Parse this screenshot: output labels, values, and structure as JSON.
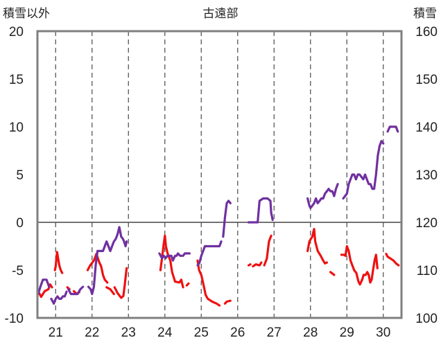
{
  "chart_data": {
    "type": "line",
    "title": "古遠部",
    "left_axis": {
      "label": "積雪以外",
      "ylim": [
        -10,
        20
      ],
      "ticks": [
        -10,
        -5,
        0,
        5,
        10,
        15,
        20
      ]
    },
    "right_axis": {
      "label": "積雪",
      "ylim": [
        100,
        160
      ],
      "ticks": [
        100,
        110,
        120,
        130,
        140,
        150,
        160
      ]
    },
    "x_axis": {
      "range": [
        20.5,
        30.5
      ],
      "ticks": [
        "21",
        "22",
        "23",
        "24",
        "25",
        "26",
        "27",
        "28",
        "29",
        "30"
      ],
      "tick_values": [
        21,
        22,
        23,
        24,
        25,
        26,
        27,
        28,
        29,
        30
      ]
    },
    "grid": {
      "vertical_dashed": true,
      "zero_line": true
    },
    "series": [
      {
        "axis": "left",
        "color": "#ee1111",
        "segments": [
          [
            [
              20.52,
              -7.2
            ],
            [
              20.6,
              -7.8
            ],
            [
              20.7,
              -7.2
            ],
            [
              20.8,
              -7.0
            ],
            [
              20.85,
              -6.5
            ],
            [
              20.9,
              -6.8
            ]
          ],
          [
            [
              20.98,
              -5.0
            ],
            [
              21.0,
              -4.6
            ],
            [
              21.04,
              -3.1
            ],
            [
              21.1,
              -4.5
            ],
            [
              21.14,
              -5.0
            ],
            [
              21.18,
              -5.3
            ]
          ],
          [
            [
              21.32,
              -6.8
            ],
            [
              21.38,
              -7.0
            ]
          ],
          [
            [
              21.5,
              -7.2
            ],
            [
              21.58,
              -7.5
            ],
            [
              21.65,
              -7.3
            ]
          ],
          [
            [
              21.88,
              -5.0
            ],
            [
              21.95,
              -4.5
            ],
            [
              22.05,
              -4.0
            ],
            [
              22.12,
              -3.3
            ],
            [
              22.2,
              -4.2
            ],
            [
              22.25,
              -4.6
            ],
            [
              22.3,
              -5.5
            ],
            [
              22.35,
              -6.0
            ],
            [
              22.42,
              -6.3
            ]
          ],
          [
            [
              22.4,
              -6.8
            ],
            [
              22.5,
              -7.0
            ],
            [
              22.6,
              -7.5
            ]
          ],
          [
            [
              22.62,
              -6.8
            ],
            [
              22.7,
              -7.4
            ],
            [
              22.8,
              -7.9
            ],
            [
              22.86,
              -7.7
            ],
            [
              22.9,
              -6.5
            ],
            [
              22.95,
              -4.8
            ]
          ],
          [
            [
              23.88,
              -5.0
            ],
            [
              23.93,
              -3.5
            ],
            [
              23.96,
              -2.5
            ],
            [
              24.0,
              -1.4
            ],
            [
              24.03,
              -2.5
            ],
            [
              24.08,
              -3.3
            ],
            [
              24.15,
              -4.0
            ],
            [
              24.2,
              -5.2
            ],
            [
              24.28,
              -6.2
            ],
            [
              24.4,
              -6.3
            ],
            [
              24.45,
              -6.0
            ],
            [
              24.5,
              -6.8
            ]
          ],
          [
            [
              24.6,
              -6.6
            ],
            [
              24.65,
              -6.4
            ]
          ],
          [
            [
              24.9,
              -4.0
            ],
            [
              24.94,
              -5.0
            ],
            [
              25.0,
              -5.5
            ],
            [
              25.06,
              -6.5
            ],
            [
              25.12,
              -7.6
            ],
            [
              25.18,
              -8.0
            ],
            [
              25.3,
              -8.3
            ],
            [
              25.42,
              -8.5
            ],
            [
              25.5,
              -8.7
            ]
          ],
          [
            [
              25.65,
              -8.5
            ],
            [
              25.7,
              -8.3
            ],
            [
              25.8,
              -8.2
            ]
          ],
          [
            [
              26.3,
              -4.5
            ],
            [
              26.35,
              -4.4
            ]
          ],
          [
            [
              26.42,
              -4.6
            ],
            [
              26.5,
              -4.4
            ],
            [
              26.6,
              -4.5
            ],
            [
              26.65,
              -4.2
            ]
          ],
          [
            [
              26.73,
              -4.5
            ],
            [
              26.8,
              -3.8
            ],
            [
              26.86,
              -2.0
            ],
            [
              26.92,
              -1.4
            ]
          ],
          [
            [
              27.92,
              -3.0
            ],
            [
              27.97,
              -2.0
            ],
            [
              28.0,
              -1.8
            ],
            [
              28.05,
              -1.5
            ],
            [
              28.08,
              -1.0
            ],
            [
              28.1,
              -0.7
            ],
            [
              28.13,
              -2.0
            ],
            [
              28.2,
              -3.0
            ],
            [
              28.28,
              -3.5
            ],
            [
              28.35,
              -4.0
            ],
            [
              28.4,
              -4.3
            ],
            [
              28.45,
              -4.2
            ]
          ],
          [
            [
              28.55,
              -5.2
            ],
            [
              28.65,
              -5.5
            ]
          ],
          [
            [
              28.85,
              -3.4
            ],
            [
              28.92,
              -3.4
            ],
            [
              28.96,
              -3.5
            ],
            [
              29.0,
              -2.5
            ],
            [
              29.05,
              -3.0
            ],
            [
              29.1,
              -4.0
            ],
            [
              29.15,
              -4.5
            ],
            [
              29.2,
              -5.0
            ],
            [
              29.26,
              -5.3
            ],
            [
              29.32,
              -6.2
            ],
            [
              29.36,
              -6.5
            ],
            [
              29.42,
              -6.0
            ],
            [
              29.46,
              -5.5
            ],
            [
              29.52,
              -5.5
            ],
            [
              29.56,
              -5.2
            ],
            [
              29.6,
              -5.5
            ],
            [
              29.64,
              -6.3
            ],
            [
              29.68,
              -6.0
            ],
            [
              29.72,
              -5.0
            ],
            [
              29.76,
              -4.0
            ],
            [
              29.8,
              -3.4
            ],
            [
              29.84,
              -4.8
            ]
          ],
          [
            [
              30.08,
              -3.3
            ],
            [
              30.12,
              -3.6
            ],
            [
              30.2,
              -3.8
            ],
            [
              30.28,
              -4.0
            ],
            [
              30.35,
              -4.3
            ],
            [
              30.42,
              -4.5
            ]
          ]
        ]
      },
      {
        "axis": "right",
        "color": "#7030a0",
        "segments": [
          [
            [
              20.52,
              105.0
            ],
            [
              20.58,
              106.5
            ],
            [
              20.65,
              108.0
            ],
            [
              20.75,
              108.0
            ],
            [
              20.82,
              106.5
            ]
          ],
          [
            [
              20.88,
              104.0
            ],
            [
              20.95,
              103.0
            ],
            [
              21.0,
              104.0
            ],
            [
              21.05,
              104.5
            ],
            [
              21.1,
              104.0
            ],
            [
              21.15,
              104.0
            ],
            [
              21.2,
              104.5
            ],
            [
              21.25,
              104.5
            ],
            [
              21.3,
              105.5
            ]
          ],
          [
            [
              21.35,
              106.0
            ],
            [
              21.42,
              105.0
            ],
            [
              21.5,
              105.0
            ],
            [
              21.6,
              105.0
            ],
            [
              21.68,
              106.0
            ],
            [
              21.75,
              106.5
            ]
          ],
          [
            [
              21.9,
              106.5
            ],
            [
              21.96,
              106.0
            ],
            [
              22.0,
              105.0
            ],
            [
              22.05,
              106.5
            ],
            [
              22.1,
              111.0
            ],
            [
              22.15,
              114.0
            ],
            [
              22.2,
              114.0
            ],
            [
              22.3,
              114.0
            ],
            [
              22.35,
              115.0
            ],
            [
              22.4,
              116.0
            ],
            [
              22.45,
              115.0
            ],
            [
              22.5,
              114.0
            ],
            [
              22.55,
              115.0
            ],
            [
              22.6,
              116.0
            ],
            [
              22.65,
              116.5
            ],
            [
              22.7,
              117.5
            ],
            [
              22.75,
              119.0
            ],
            [
              22.8,
              117.0
            ],
            [
              22.85,
              116.5
            ],
            [
              22.88,
              116.0
            ],
            [
              22.92,
              115.0
            ],
            [
              22.95,
              116.0
            ]
          ],
          [
            [
              23.85,
              113.5
            ],
            [
              23.92,
              112.5
            ],
            [
              23.97,
              113.0
            ],
            [
              24.02,
              112.5
            ],
            [
              24.07,
              113.0
            ],
            [
              24.12,
              113.0
            ],
            [
              24.18,
              113.0
            ],
            [
              24.22,
              112.0
            ],
            [
              24.28,
              113.0
            ],
            [
              24.32,
              113.0
            ],
            [
              24.36,
              113.5
            ],
            [
              24.42,
              113.0
            ],
            [
              24.46,
              113.0
            ],
            [
              24.5,
              113.0
            ],
            [
              24.55,
              113.5
            ],
            [
              24.62,
              113.5
            ],
            [
              24.68,
              113.5
            ]
          ],
          [
            [
              24.9,
              111.0
            ],
            [
              24.95,
              111.5
            ],
            [
              25.0,
              113.0
            ],
            [
              25.05,
              114.0
            ],
            [
              25.1,
              115.0
            ],
            [
              25.15,
              115.0
            ],
            [
              25.2,
              115.0
            ],
            [
              25.3,
              115.0
            ],
            [
              25.4,
              115.0
            ],
            [
              25.5,
              115.0
            ],
            [
              25.55,
              116.0
            ]
          ],
          [
            [
              25.6,
              117.0
            ],
            [
              25.65,
              121.0
            ],
            [
              25.7,
              124.0
            ],
            [
              25.75,
              124.5
            ],
            [
              25.8,
              124.0
            ]
          ],
          [
            [
              26.3,
              120.0
            ],
            [
              26.42,
              120.0
            ],
            [
              26.55,
              120.0
            ],
            [
              26.6,
              124.5
            ],
            [
              26.7,
              125.0
            ],
            [
              26.82,
              125.0
            ],
            [
              26.9,
              124.5
            ],
            [
              26.92,
              122.0
            ],
            [
              26.96,
              120.5
            ]
          ],
          [
            [
              27.92,
              125.0
            ],
            [
              27.97,
              123.5
            ],
            [
              28.0,
              123.0
            ],
            [
              28.05,
              123.5
            ],
            [
              28.1,
              124.0
            ],
            [
              28.15,
              125.0
            ],
            [
              28.2,
              124.0
            ],
            [
              28.25,
              124.5
            ],
            [
              28.3,
              125.0
            ],
            [
              28.35,
              125.0
            ],
            [
              28.4,
              126.0
            ],
            [
              28.45,
              126.5
            ],
            [
              28.5,
              127.0
            ],
            [
              28.55,
              126.5
            ],
            [
              28.6,
              126.5
            ],
            [
              28.65,
              125.5
            ],
            [
              28.7,
              127.0
            ],
            [
              28.75,
              128.0
            ]
          ],
          [
            [
              28.9,
              125.0
            ],
            [
              28.95,
              125.5
            ],
            [
              29.0,
              126.0
            ],
            [
              29.05,
              128.0
            ],
            [
              29.1,
              129.0
            ],
            [
              29.15,
              130.0
            ],
            [
              29.2,
              130.0
            ],
            [
              29.25,
              129.0
            ],
            [
              29.3,
              130.0
            ],
            [
              29.35,
              130.0
            ],
            [
              29.4,
              129.5
            ],
            [
              29.45,
              129.0
            ],
            [
              29.5,
              130.0
            ],
            [
              29.55,
              129.0
            ],
            [
              29.6,
              128.0
            ],
            [
              29.65,
              128.0
            ],
            [
              29.7,
              127.0
            ],
            [
              29.75,
              127.0
            ],
            [
              29.8,
              130.0
            ],
            [
              29.85,
              134.0
            ],
            [
              29.9,
              136.0
            ],
            [
              29.95,
              137.0
            ],
            [
              30.0,
              136.5
            ]
          ],
          [
            [
              30.12,
              139.0
            ],
            [
              30.18,
              140.0
            ],
            [
              30.25,
              140.0
            ],
            [
              30.3,
              140.0
            ],
            [
              30.35,
              140.0
            ],
            [
              30.4,
              139.0
            ]
          ]
        ]
      }
    ]
  }
}
